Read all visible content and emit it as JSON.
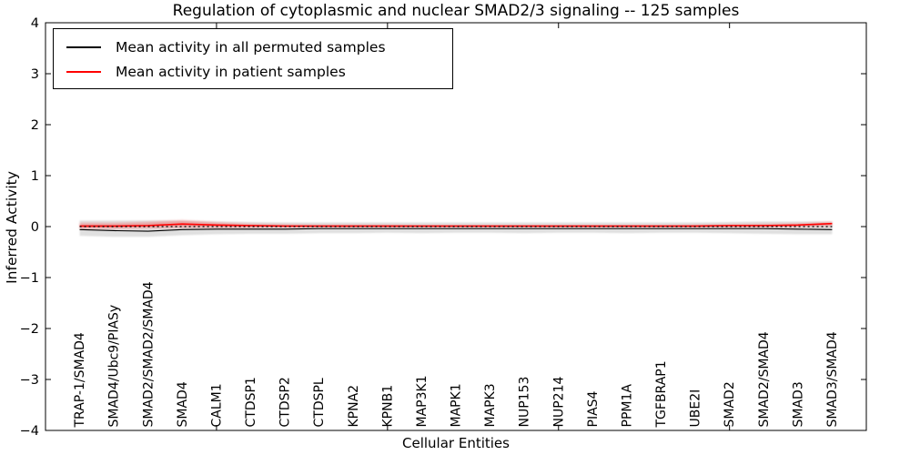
{
  "chart_data": {
    "type": "line",
    "title": "Regulation of cytoplasmic and nuclear SMAD2/3 signaling -- 125 samples",
    "xlabel": "Cellular Entities",
    "ylabel": "Inferred Activity",
    "ylim": [
      -4,
      4
    ],
    "yticks": [
      -4,
      -3,
      -2,
      -1,
      0,
      1,
      2,
      3,
      4
    ],
    "ytick_labels": [
      "−4",
      "−3",
      "−2",
      "−1",
      "0",
      "1",
      "2",
      "3",
      "4"
    ],
    "xlim": [
      0,
      24
    ],
    "x_major_ticks": [
      5,
      10,
      15,
      20
    ],
    "grid": false,
    "legend_position": "upper left",
    "categories": [
      "TRAP-1/SMAD4",
      "SMAD4/Ubc9/PIASy",
      "SMAD2/SMAD2/SMAD4",
      "SMAD4",
      "CALM1",
      "CTDSP1",
      "CTDSP2",
      "CTDSPL",
      "KPNA2",
      "KPNB1",
      "MAP3K1",
      "MAPK1",
      "MAPK3",
      "NUP153",
      "NUP214",
      "PIAS4",
      "PPM1A",
      "TGFBRAP1",
      "UBE2I",
      "SMAD2",
      "SMAD2/SMAD4",
      "SMAD3",
      "SMAD3/SMAD4"
    ],
    "series": [
      {
        "name": "Mean activity in all permuted samples",
        "color": "#000000",
        "style": "solid",
        "values": [
          -0.06,
          -0.08,
          -0.09,
          -0.06,
          -0.05,
          -0.05,
          -0.05,
          -0.04,
          -0.04,
          -0.04,
          -0.04,
          -0.04,
          -0.04,
          -0.04,
          -0.04,
          -0.04,
          -0.04,
          -0.04,
          -0.04,
          -0.04,
          -0.04,
          -0.05,
          -0.06
        ]
      },
      {
        "name": "Mean activity in patient samples",
        "color": "#ff0000",
        "style": "solid",
        "values": [
          0.01,
          0.01,
          0.02,
          0.05,
          0.03,
          0.02,
          0.01,
          0.01,
          0.01,
          0.01,
          0.01,
          0.01,
          0.01,
          0.01,
          0.01,
          0.01,
          0.01,
          0.01,
          0.01,
          0.02,
          0.02,
          0.03,
          0.06
        ]
      }
    ],
    "zero_line": {
      "y": 0,
      "color": "#000000",
      "style": "dotted"
    },
    "bands": [
      {
        "name": "permuted-sample-range",
        "color": "#000000",
        "opacity": 0.12,
        "upper": [
          0.12,
          0.12,
          0.12,
          0.12,
          0.1,
          0.09,
          0.08,
          0.08,
          0.08,
          0.08,
          0.08,
          0.08,
          0.08,
          0.08,
          0.08,
          0.08,
          0.08,
          0.08,
          0.08,
          0.09,
          0.1,
          0.1,
          0.1
        ],
        "lower": [
          -0.18,
          -0.2,
          -0.2,
          -0.17,
          -0.15,
          -0.14,
          -0.14,
          -0.13,
          -0.13,
          -0.12,
          -0.13,
          -0.12,
          -0.12,
          -0.13,
          -0.12,
          -0.12,
          -0.13,
          -0.12,
          -0.12,
          -0.13,
          -0.14,
          -0.15,
          -0.15
        ]
      },
      {
        "name": "patient-sample-range",
        "color": "#ff0000",
        "opacity": 0.28,
        "upper": [
          0.07,
          0.07,
          0.09,
          0.12,
          0.08,
          0.05,
          0.04,
          0.03,
          0.03,
          0.03,
          0.02,
          0.02,
          0.02,
          0.02,
          0.02,
          0.02,
          0.02,
          0.02,
          0.03,
          0.04,
          0.05,
          0.06,
          0.09
        ],
        "lower": [
          -0.04,
          -0.04,
          -0.03,
          -0.02,
          -0.02,
          -0.02,
          -0.01,
          -0.01,
          -0.01,
          -0.01,
          -0.01,
          -0.01,
          -0.01,
          -0.01,
          -0.01,
          -0.01,
          -0.01,
          -0.01,
          -0.01,
          -0.01,
          -0.01,
          0.0,
          0.01
        ]
      }
    ]
  }
}
